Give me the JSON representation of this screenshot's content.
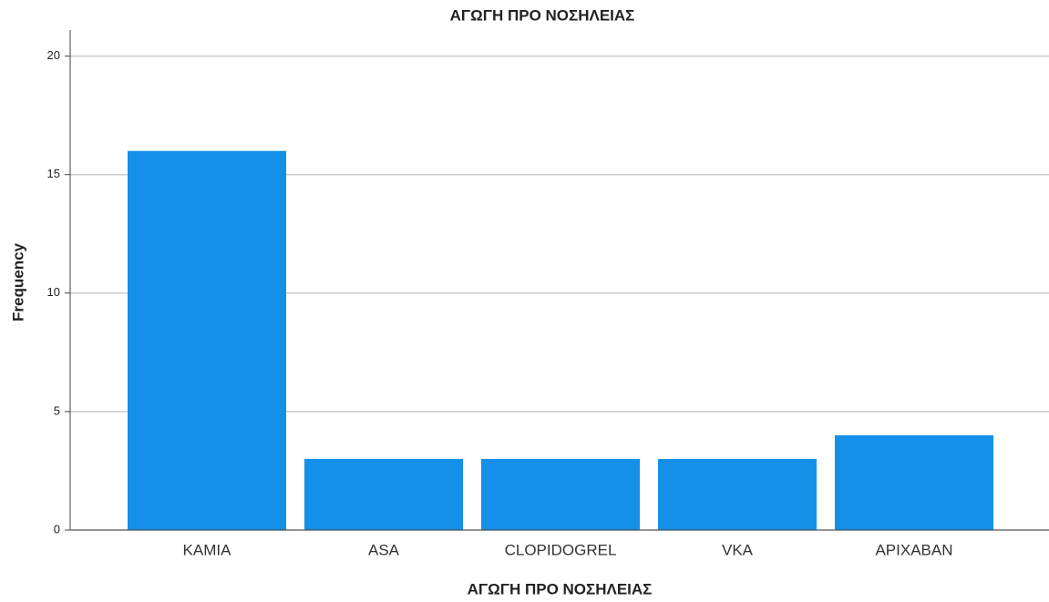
{
  "chart_data": {
    "type": "bar",
    "title": "ΑΓΩΓΗ ΠΡΟ ΝΟΣΗΛΕΙΑΣ",
    "x_label": "ΑΓΩΓΗ ΠΡΟ ΝΟΣΗΛΕΙΑΣ",
    "y_label": "Frequency",
    "categories": [
      "KAMIA",
      "ASA",
      "CLOPIDOGREL",
      "VKA",
      "APIXABAN"
    ],
    "values": [
      16,
      3,
      3,
      3,
      4
    ],
    "color": "#1490e8",
    "ylim": [
      0,
      21.1
    ],
    "yticks": [
      0,
      5,
      10,
      15,
      20
    ],
    "grid": true
  }
}
